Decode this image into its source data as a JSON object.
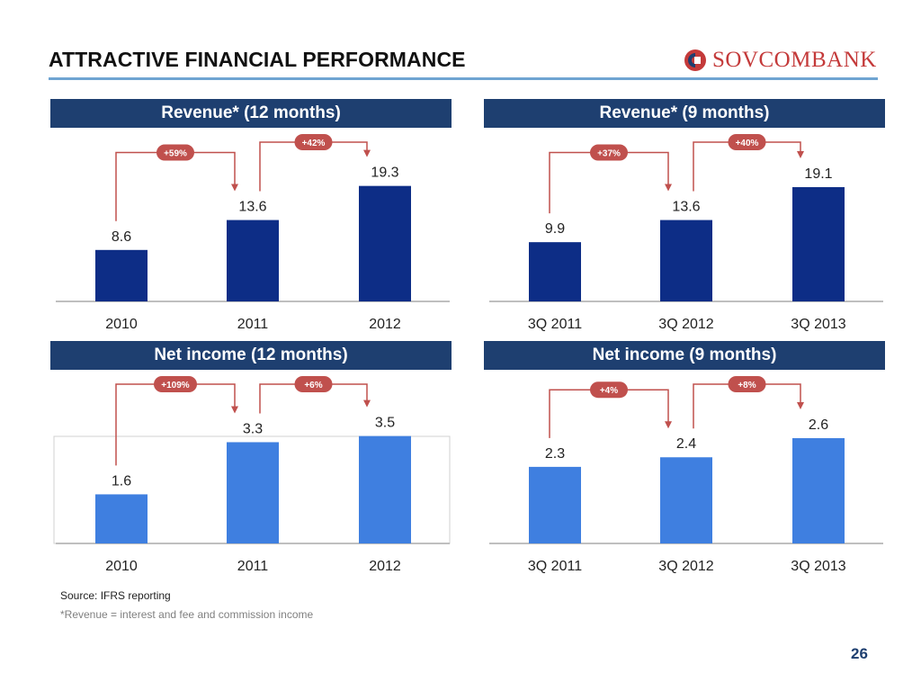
{
  "page": {
    "title": "ATTRACTIVE FINANCIAL PERFORMANCE",
    "logo_text": "SOVCOMBANK",
    "source": "Source: IFRS reporting",
    "footnote": "*Revenue = interest and fee and commission income",
    "page_number": "26"
  },
  "colors": {
    "header": "#1e3f70",
    "revenue_bar": "#0d2d86",
    "net_income_bar": "#3f7fe0",
    "growth_callout": "#c0504d",
    "rule": "#6fa4d2"
  },
  "chart_data": [
    {
      "type": "bar",
      "title": "Revenue* (12 months)",
      "categories": [
        "2010",
        "2011",
        "2012"
      ],
      "values": [
        8.6,
        13.6,
        19.3
      ],
      "value_labels": [
        "8.6",
        "13.6",
        "19.3"
      ],
      "growth_labels": [
        "+59%",
        "+42%"
      ],
      "ylim": [
        0,
        20
      ],
      "bar_color": "#0d2d86",
      "boxed": false
    },
    {
      "type": "bar",
      "title": "Revenue* (9 months)",
      "categories": [
        "3Q 2011",
        "3Q 2012",
        "3Q 2013"
      ],
      "values": [
        9.9,
        13.6,
        19.1
      ],
      "value_labels": [
        "9.9",
        "13.6",
        "19.1"
      ],
      "growth_labels": [
        "+37%",
        "+40%"
      ],
      "ylim": [
        0,
        20
      ],
      "bar_color": "#0d2d86",
      "boxed": false
    },
    {
      "type": "bar",
      "title": "Net income (12 months)",
      "categories": [
        "2010",
        "2011",
        "2012"
      ],
      "values": [
        1.6,
        3.3,
        3.5
      ],
      "value_labels": [
        "1.6",
        "3.3",
        "3.5"
      ],
      "growth_labels": [
        "+109%",
        "+6%"
      ],
      "ylim": [
        0,
        3.9
      ],
      "bar_color": "#3f7fe0",
      "boxed": true
    },
    {
      "type": "bar",
      "title": "Net income (9 months)",
      "categories": [
        "3Q 2011",
        "3Q 2012",
        "3Q 2013"
      ],
      "values": [
        2.3,
        2.4,
        2.6
      ],
      "value_labels": [
        "2.3",
        "2.4",
        "2.6"
      ],
      "growth_labels": [
        "+4%",
        "+8%"
      ],
      "ylim": [
        1.5,
        2.75
      ],
      "bar_color": "#3f7fe0",
      "boxed": false
    }
  ]
}
